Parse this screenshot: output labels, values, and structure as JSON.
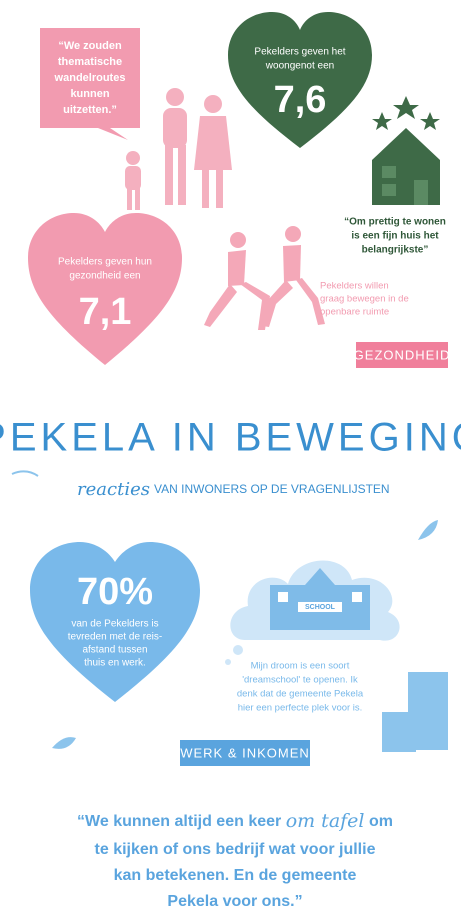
{
  "quote_walk": {
    "lines": [
      "“We zouden",
      "thematische",
      "wandelroutes",
      "kunnen",
      "uitzetten.”"
    ]
  },
  "heart_living": {
    "lines": [
      "Pekelders geven het",
      "woongenot een"
    ],
    "score": "7,6"
  },
  "quote_house": {
    "lines": [
      "“Om prettig te wonen",
      "is een fijn huis het",
      "belangrijkste”"
    ]
  },
  "heart_health": {
    "lines": [
      "Pekelders geven hun",
      "gezondheid een"
    ],
    "score": "7,1"
  },
  "exercise_note": {
    "lines": [
      "Pekelders willen",
      "graag bewegen in de",
      "openbare ruimte"
    ]
  },
  "tag_health": "GEZONDHEID",
  "title": "PEKELA IN BEWEGING",
  "subtitle": {
    "script": "reacties",
    "text": "VAN INWONERS OP DE VRAGENLIJSTEN"
  },
  "heart_commute": {
    "score": "70%",
    "lines": [
      "van de Pekelders is",
      "tevreden met de reis-",
      "afstand tussen",
      "thuis en werk."
    ]
  },
  "school_sign": "SCHOOL",
  "dream_quote": {
    "lines": [
      "Mijn droom is een soort",
      "'dreamschool' te openen. Ik",
      "denk dat de gemeente Pekela",
      "hier een perfecte plek voor is."
    ]
  },
  "tag_work": "WERK & INKOMEN",
  "bottom_quote": {
    "line1_start": "“We kunnen altijd een keer ",
    "line1_script": "om tafel",
    "line1_end": " om",
    "lines": [
      "te kijken of ons bedrijf wat voor jullie",
      "kan betekenen. En de gemeente",
      "Pekela voor ons.”"
    ]
  }
}
